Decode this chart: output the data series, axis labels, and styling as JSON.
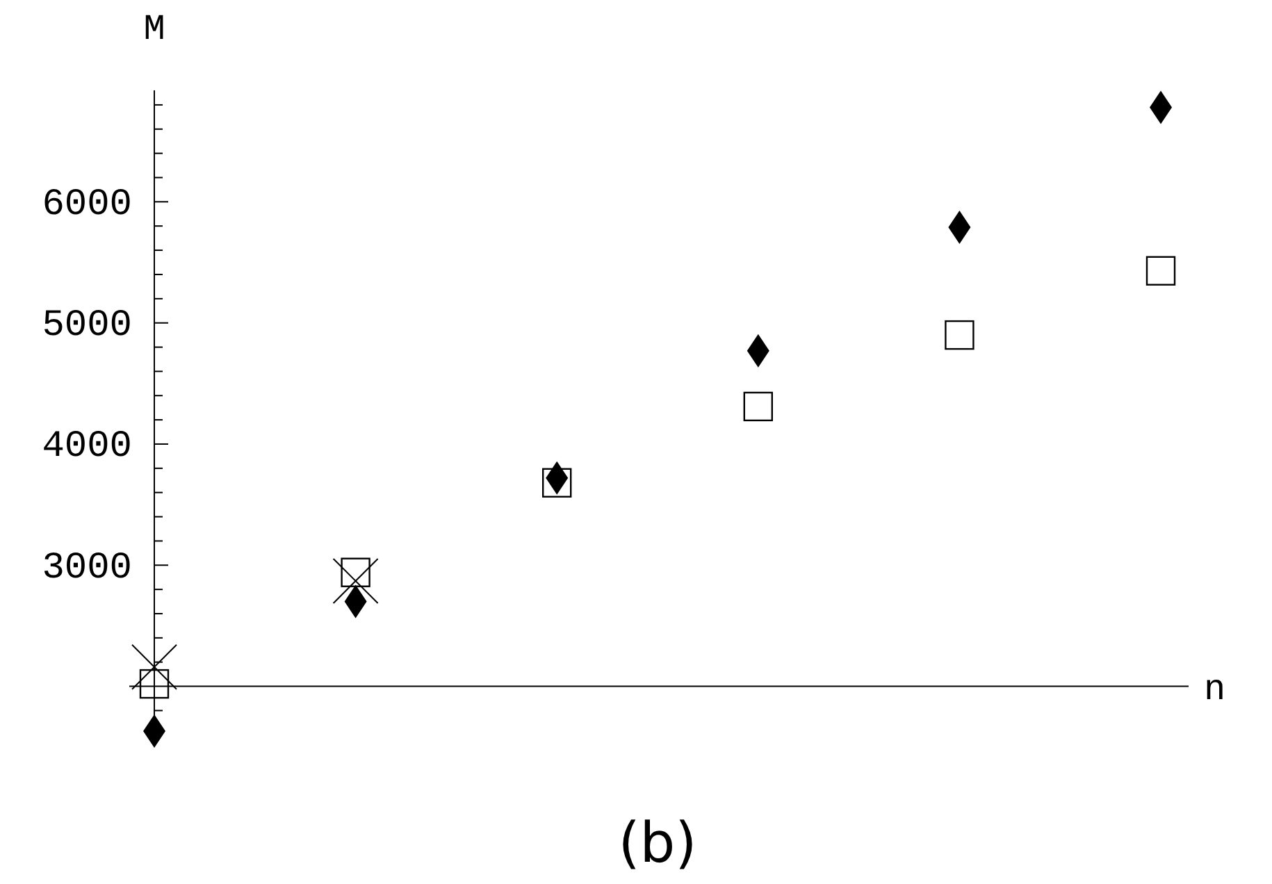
{
  "chart_data": {
    "type": "scatter",
    "title": "(b)",
    "xlabel": "n",
    "ylabel": "M",
    "categories": [
      null,
      null,
      null,
      null,
      null,
      null
    ],
    "series": [
      {
        "color": "#000000",
        "marker": "diamond",
        "values": [
          1630,
          2700,
          3720,
          4770,
          5790,
          6780
        ]
      },
      {
        "color": "#000000",
        "marker": "square",
        "values": [
          2020,
          2940,
          3680,
          4310,
          4900,
          5430
        ]
      },
      {
        "color": "#000000",
        "marker": "cross",
        "values": [
          2160,
          2870,
          null,
          null,
          null,
          null
        ]
      }
    ],
    "ylim": [
      1550,
      6920
    ],
    "yticks": [
      3000,
      4000,
      5000,
      6000
    ],
    "ref_lines": [
      {
        "axis": "y",
        "value": 2000
      }
    ],
    "grid": false
  }
}
